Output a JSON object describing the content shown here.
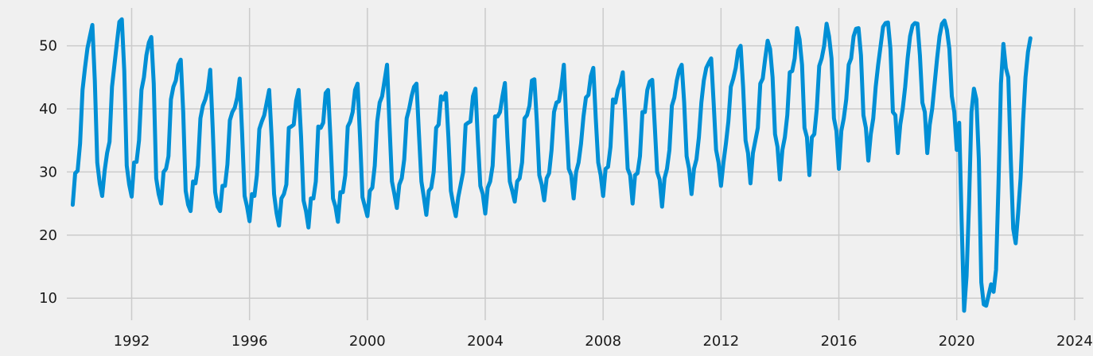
{
  "chart_data": {
    "type": "line",
    "title": "",
    "xlabel": "",
    "ylabel": "",
    "grid": true,
    "background_color": "#f0f0f0",
    "grid_color": "#cbcbcb",
    "xlim": [
      1989.8,
      2024.3
    ],
    "ylim": [
      6.5,
      56
    ],
    "x_ticks": [
      1992,
      1996,
      2000,
      2004,
      2008,
      2012,
      2016,
      2020,
      2024
    ],
    "x_tick_labels": [
      "1992",
      "1996",
      "2000",
      "2004",
      "2008",
      "2012",
      "2016",
      "2020",
      "2024"
    ],
    "y_ticks": [
      10,
      20,
      30,
      40,
      50
    ],
    "y_tick_labels": [
      "10",
      "20",
      "30",
      "40",
      "50"
    ],
    "x_start": 1990.0,
    "x_step_years": 0.0833333,
    "series": [
      {
        "color": "#008fd5",
        "values": [
          24.8,
          29.8,
          30.2,
          34.5,
          43.0,
          46.5,
          49.6,
          51.5,
          53.3,
          44.5,
          31.5,
          28.2,
          26.2,
          30.2,
          33.0,
          34.8,
          43.5,
          47.0,
          50.5,
          53.8,
          54.2,
          46.0,
          31.0,
          28.0,
          26.1,
          31.5,
          31.6,
          35.0,
          43.0,
          45.0,
          48.5,
          50.5,
          51.4,
          44.0,
          29.0,
          26.5,
          25.0,
          30.0,
          30.5,
          32.5,
          41.5,
          43.5,
          44.5,
          47.0,
          47.8,
          39.5,
          27.0,
          24.8,
          23.8,
          28.5,
          28.2,
          31.0,
          38.5,
          40.5,
          41.5,
          43.0,
          46.2,
          37.0,
          26.8,
          24.5,
          23.8,
          27.8,
          27.8,
          31.2,
          38.2,
          39.5,
          40.2,
          41.8,
          44.8,
          36.0,
          26.2,
          24.5,
          22.2,
          26.5,
          26.2,
          29.5,
          36.8,
          38.0,
          39.0,
          41.0,
          43.0,
          35.5,
          26.5,
          23.5,
          21.5,
          25.8,
          26.5,
          28.0,
          37.0,
          37.2,
          37.5,
          41.3,
          43.0,
          35.5,
          25.5,
          23.8,
          21.2,
          25.8,
          25.8,
          28.5,
          37.2,
          37.0,
          37.8,
          42.5,
          43.0,
          35.0,
          25.8,
          24.5,
          22.1,
          26.8,
          26.8,
          29.5,
          37.2,
          38.0,
          39.5,
          43.0,
          44.0,
          35.5,
          26.0,
          24.5,
          23.0,
          27.0,
          27.5,
          31.0,
          38.0,
          41.0,
          42.0,
          44.5,
          47.0,
          37.5,
          28.5,
          26.5,
          24.3,
          28.0,
          29.0,
          32.0,
          38.5,
          40.0,
          42.0,
          43.5,
          44.0,
          36.0,
          28.5,
          26.0,
          23.2,
          27.0,
          27.5,
          30.0,
          37.0,
          37.5,
          42.0,
          41.5,
          42.5,
          35.5,
          27.0,
          24.8,
          23.0,
          26.0,
          28.0,
          30.0,
          37.5,
          37.8,
          38.0,
          42.0,
          43.2,
          35.0,
          27.8,
          26.5,
          23.4,
          27.5,
          28.5,
          31.0,
          38.8,
          38.8,
          39.5,
          42.0,
          44.1,
          35.5,
          28.5,
          27.0,
          25.3,
          28.5,
          29.0,
          31.5,
          38.5,
          39.0,
          40.5,
          44.5,
          44.7,
          38.0,
          29.5,
          28.0,
          25.5,
          29.0,
          29.8,
          33.5,
          39.5,
          41.0,
          41.2,
          43.5,
          47.0,
          38.0,
          30.5,
          29.5,
          25.8,
          30.0,
          31.5,
          34.5,
          38.8,
          41.8,
          42.2,
          45.2,
          46.5,
          38.5,
          31.5,
          29.5,
          26.2,
          30.5,
          30.8,
          34.0,
          41.5,
          41.0,
          43.0,
          44.0,
          45.8,
          38.5,
          30.5,
          29.5,
          25.0,
          29.5,
          29.8,
          32.5,
          39.5,
          39.5,
          43.0,
          44.3,
          44.6,
          37.5,
          30.0,
          28.8,
          24.5,
          29.0,
          30.5,
          33.5,
          40.5,
          41.8,
          44.5,
          46.2,
          47.0,
          41.0,
          32.5,
          30.5,
          26.5,
          30.5,
          32.0,
          35.5,
          41.0,
          44.5,
          46.5,
          47.3,
          48.0,
          41.0,
          33.5,
          31.5,
          27.8,
          31.5,
          34.5,
          38.0,
          43.5,
          44.8,
          46.5,
          49.3,
          50.0,
          43.5,
          35.0,
          33.0,
          28.2,
          33.0,
          35.0,
          37.0,
          44.0,
          44.8,
          48.0,
          50.8,
          49.5,
          45.0,
          36.0,
          34.0,
          28.8,
          33.5,
          35.5,
          39.0,
          45.8,
          46.0,
          48.0,
          52.8,
          51.0,
          47.0,
          37.0,
          35.5,
          29.5,
          35.5,
          36.0,
          40.0,
          46.8,
          48.0,
          50.0,
          53.5,
          51.5,
          48.0,
          38.5,
          36.5,
          30.5,
          36.5,
          38.5,
          41.5,
          47.0,
          48.0,
          51.5,
          52.7,
          52.8,
          48.5,
          39.0,
          37.0,
          31.8,
          36.0,
          38.5,
          43.5,
          47.0,
          50.0,
          53.0,
          53.6,
          53.7,
          49.5,
          39.5,
          39.0,
          33.0,
          37.5,
          40.0,
          43.5,
          48.0,
          51.5,
          53.2,
          53.6,
          53.5,
          48.5,
          41.0,
          39.5,
          33.0,
          37.5,
          40.0,
          44.0,
          48.0,
          51.5,
          53.5,
          54.0,
          52.5,
          49.5,
          42.0,
          39.5,
          33.5,
          37.8,
          22.0,
          8.0,
          13.5,
          25.0,
          39.5,
          43.2,
          41.5,
          32.0,
          12.5,
          9.0,
          8.8,
          10.5,
          12.2,
          11.0,
          14.5,
          28.0,
          44.0,
          50.3,
          46.5,
          45.0,
          32.0,
          21.0,
          18.7,
          23.5,
          29.0,
          38.0,
          45.0,
          49.0,
          51.2
        ]
      }
    ]
  }
}
